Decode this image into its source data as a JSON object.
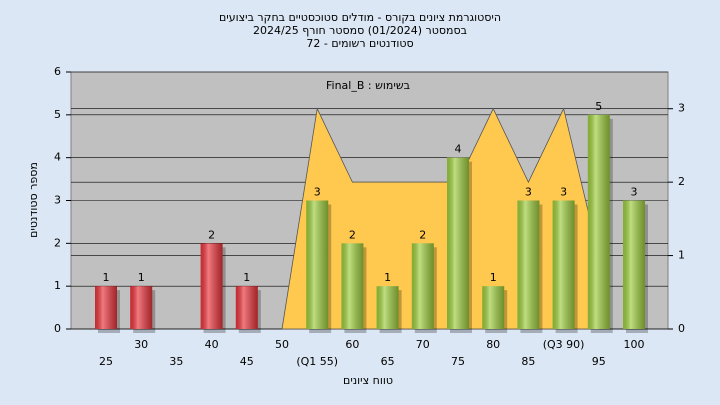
{
  "chart_data": {
    "type": "histogram",
    "title": [
      "היסטוגרמת ציונים בקורס - מודלים סטוכסטיים בחקר ביצועים",
      "בסמסטר (01/2024) סמסטר חורף 2024/25",
      "סטודנטים רשומים - 72"
    ],
    "annotation": "בשימוש : Final_B",
    "xlabel": "טווח ציונים",
    "ylabel": "מספר סטודנטים",
    "categories": [
      "25",
      "30",
      "35",
      "40",
      "45",
      "50",
      "(Q1 55)",
      "60",
      "65",
      "70",
      "75",
      "80",
      "85",
      "(Q3 90)",
      "95",
      "100"
    ],
    "values": [
      1,
      1,
      0,
      2,
      1,
      0,
      3,
      2,
      1,
      2,
      4,
      1,
      3,
      3,
      5,
      3
    ],
    "bar_colors": [
      "#e8333a",
      "#e8333a",
      "#e8333a",
      "#e8333a",
      "#e8333a",
      "#e8333a",
      "#9ccc3c",
      "#9ccc3c",
      "#9ccc3c",
      "#9ccc3c",
      "#9ccc3c",
      "#9ccc3c",
      "#9ccc3c",
      "#9ccc3c",
      "#9ccc3c",
      "#9ccc3c"
    ],
    "area": {
      "color": "#ffc84e",
      "axis": "y2",
      "values": [
        null,
        null,
        null,
        null,
        null,
        0,
        3,
        2,
        2,
        2,
        2,
        3,
        2,
        3,
        1,
        null
      ]
    },
    "ylim": [
      0,
      6
    ],
    "yticks": [
      0,
      1,
      2,
      3,
      4,
      5,
      6
    ],
    "y2lim": [
      0,
      3.5
    ],
    "y2ticks": [
      0,
      1,
      2,
      3
    ],
    "grid": true
  }
}
